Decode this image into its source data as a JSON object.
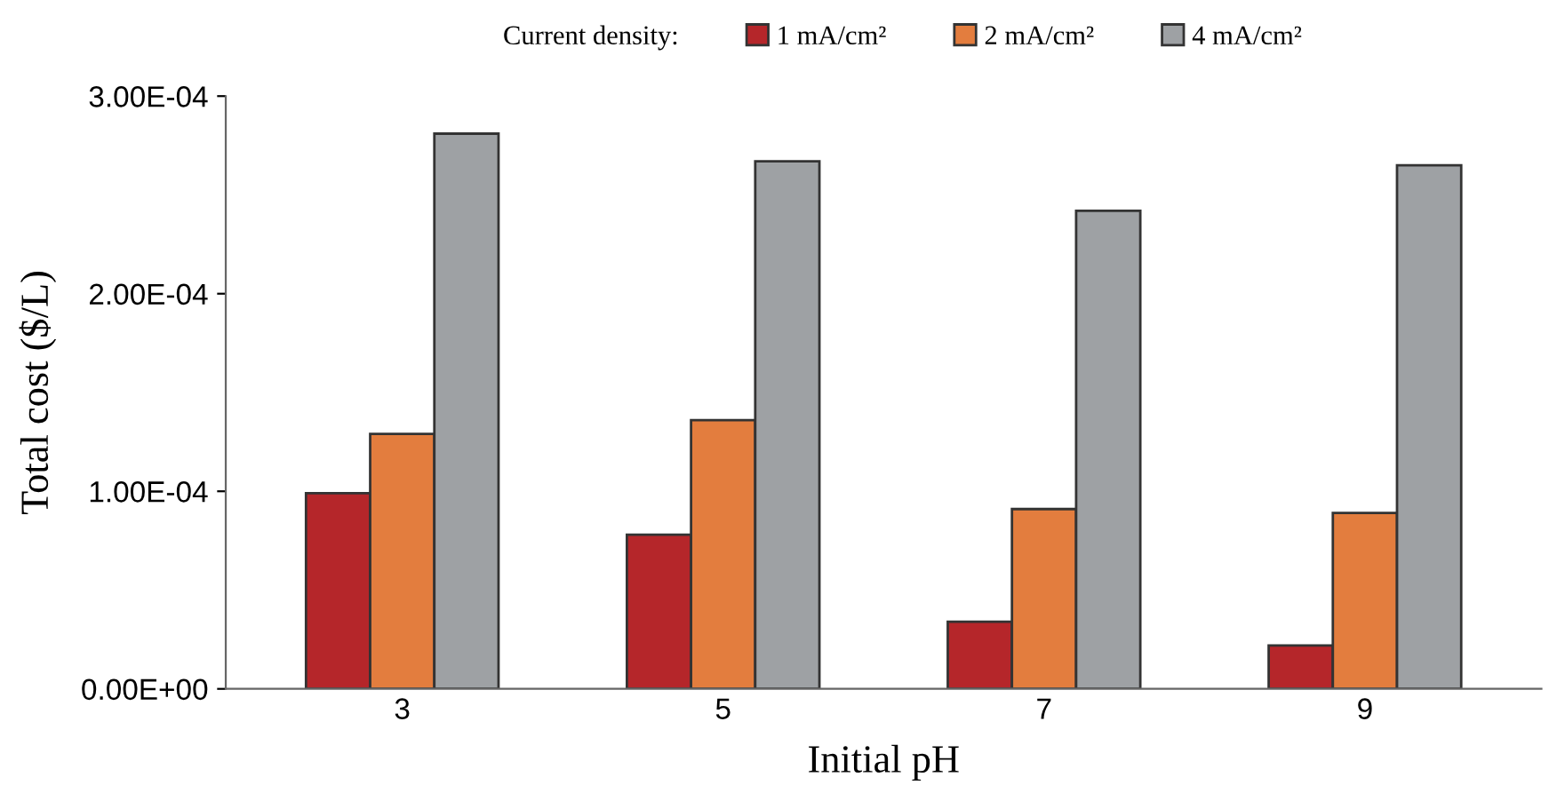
{
  "chart_data": {
    "type": "bar",
    "xlabel": "Initial pH",
    "ylabel": "Total cost ($/L)",
    "legend_title": "Current density:",
    "categories": [
      "3",
      "5",
      "7",
      "9"
    ],
    "series": [
      {
        "name": "1 mA/cm²",
        "color": "#b5262a",
        "values": [
          9.9e-05,
          7.8e-05,
          3.4e-05,
          2.2e-05
        ]
      },
      {
        "name": "2 mA/cm²",
        "color": "#e37d3e",
        "values": [
          0.000129,
          0.000136,
          9.1e-05,
          8.9e-05
        ]
      },
      {
        "name": "4 mA/cm²",
        "color": "#9ea1a4",
        "values": [
          0.000281,
          0.000267,
          0.000242,
          0.000265
        ]
      }
    ],
    "ylim": [
      0,
      0.0003
    ],
    "yticks": [
      {
        "value": 0,
        "label": "0.00E+00"
      },
      {
        "value": 0.0001,
        "label": "1.00E-04"
      },
      {
        "value": 0.0002,
        "label": "2.00E-04"
      },
      {
        "value": 0.0003,
        "label": "3.00E-04"
      }
    ],
    "grid": false,
    "legend": "top"
  }
}
